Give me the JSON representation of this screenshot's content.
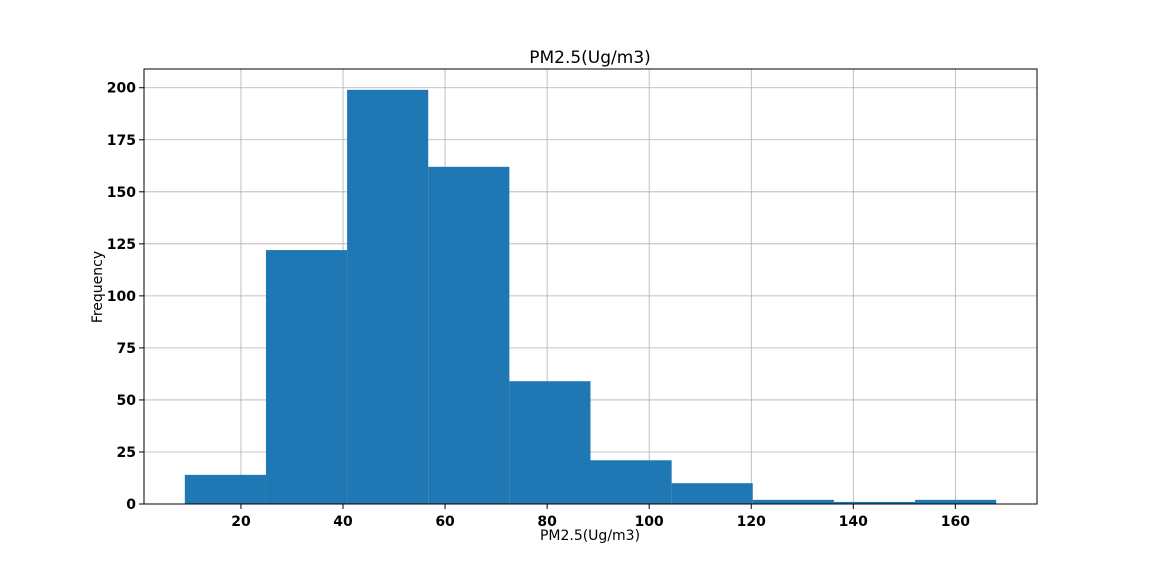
{
  "chart_data": {
    "type": "bar",
    "subtype": "histogram",
    "title": "PM2.5(Ug/m3)",
    "xlabel": "PM2.5(Ug/m3)",
    "ylabel": "Frequency",
    "bin_edges": [
      9.0,
      24.9,
      40.8,
      56.7,
      72.6,
      88.5,
      104.4,
      120.3,
      136.2,
      152.1,
      168.0
    ],
    "values": [
      14,
      122,
      199,
      162,
      59,
      21,
      10,
      2,
      1,
      2
    ],
    "xlim": [
      1.0,
      176.0
    ],
    "ylim": [
      0,
      209
    ],
    "xticks": [
      20,
      40,
      60,
      80,
      100,
      120,
      140,
      160
    ],
    "yticks": [
      0,
      25,
      50,
      75,
      100,
      125,
      150,
      175,
      200
    ],
    "grid": true,
    "color": "#1f77b4"
  }
}
